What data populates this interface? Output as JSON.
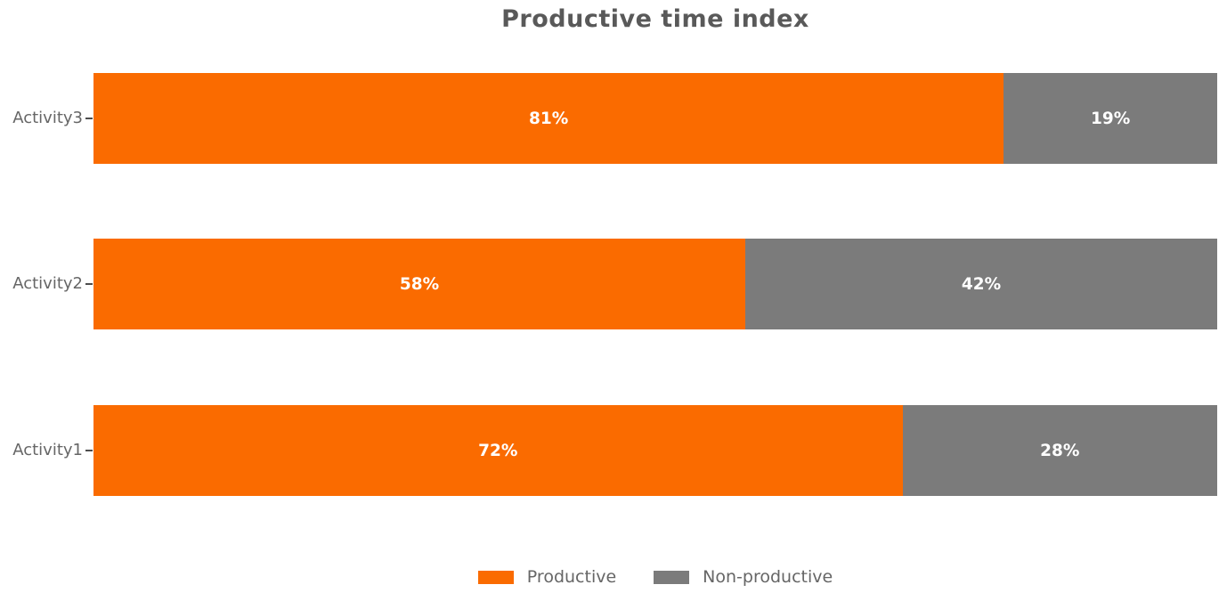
{
  "title": "Productive time index",
  "chart_data": {
    "type": "bar",
    "orientation": "horizontal",
    "stacked": true,
    "title": "Productive time index",
    "categories": [
      "Activity3",
      "Activity2",
      "Activity1"
    ],
    "series": [
      {
        "name": "Productive",
        "color": "#fa6b00",
        "values": [
          81,
          58,
          72
        ]
      },
      {
        "name": "Non-productive",
        "color": "#7b7b7b",
        "values": [
          19,
          42,
          28
        ]
      }
    ],
    "value_labels": [
      [
        "81%",
        "19%"
      ],
      [
        "58%",
        "42%"
      ],
      [
        "72%",
        "28%"
      ]
    ],
    "xlim": [
      0,
      100
    ],
    "value_format": "percent",
    "grid": false,
    "legend_position": "bottom",
    "legend": [
      "Productive",
      "Non-productive"
    ]
  },
  "colors": {
    "productive": "#fa6b00",
    "non_productive": "#7b7b7b",
    "title_text": "#595959",
    "axis_text": "#666666",
    "bar_label_text": "#ffffff",
    "background": "#ffffff"
  }
}
